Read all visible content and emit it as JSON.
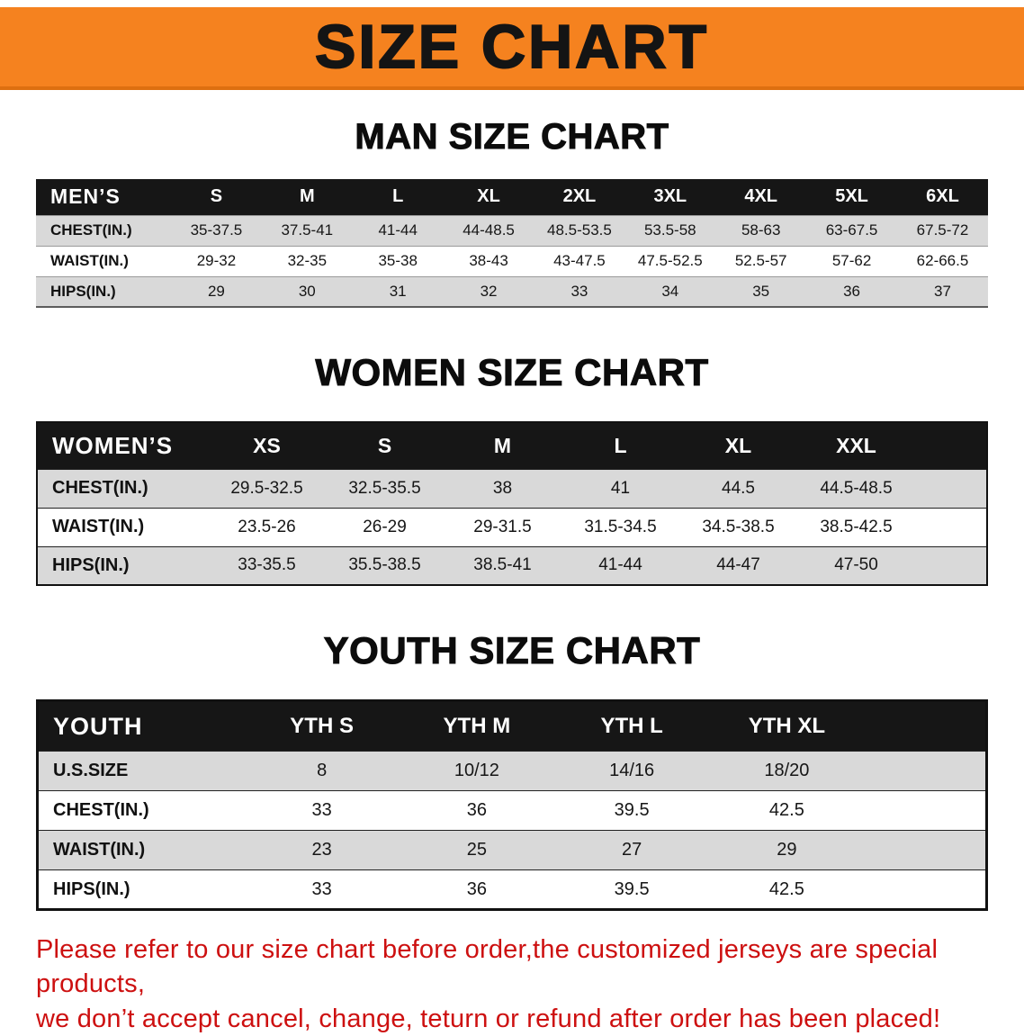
{
  "banner": {
    "title": "SIZE CHART"
  },
  "sections": [
    {
      "heading": "MAN SIZE CHART",
      "table": {
        "header": [
          "MEN’S",
          "S",
          "M",
          "L",
          "XL",
          "2XL",
          "3XL",
          "4XL",
          "5XL",
          "6XL"
        ],
        "rows": [
          [
            "CHEST(IN.)",
            "35-37.5",
            "37.5-41",
            "41-44",
            "44-48.5",
            "48.5-53.5",
            "53.5-58",
            "58-63",
            "63-67.5",
            "67.5-72"
          ],
          [
            "WAIST(IN.)",
            "29-32",
            "32-35",
            "35-38",
            "38-43",
            "43-47.5",
            "47.5-52.5",
            "52.5-57",
            "57-62",
            "62-66.5"
          ],
          [
            "HIPS(IN.)",
            "29",
            "30",
            "31",
            "32",
            "33",
            "34",
            "35",
            "36",
            "37"
          ]
        ]
      }
    },
    {
      "heading": "WOMEN SIZE CHART",
      "table": {
        "header": [
          "WOMEN’S",
          "XS",
          "S",
          "M",
          "L",
          "XL",
          "XXL"
        ],
        "rows": [
          [
            "CHEST(IN.)",
            "29.5-32.5",
            "32.5-35.5",
            "38",
            "41",
            "44.5",
            "44.5-48.5"
          ],
          [
            "WAIST(IN.)",
            "23.5-26",
            "26-29",
            "29-31.5",
            "31.5-34.5",
            "34.5-38.5",
            "38.5-42.5"
          ],
          [
            "HIPS(IN.)",
            "33-35.5",
            "35.5-38.5",
            "38.5-41",
            "41-44",
            "44-47",
            "47-50"
          ]
        ]
      }
    },
    {
      "heading": "YOUTH SIZE CHART",
      "table": {
        "header": [
          "YOUTH",
          "YTH S",
          "YTH M",
          "YTH L",
          "YTH XL"
        ],
        "rows": [
          [
            "U.S.SIZE",
            "8",
            "10/12",
            "14/16",
            "18/20"
          ],
          [
            "CHEST(IN.)",
            "33",
            "36",
            "39.5",
            "42.5"
          ],
          [
            "WAIST(IN.)",
            "23",
            "25",
            "27",
            "29"
          ],
          [
            "HIPS(IN.)",
            "33",
            "36",
            "39.5",
            "42.5"
          ]
        ]
      }
    }
  ],
  "disclaimer": {
    "line1": "Please refer to our size chart before order,the customized jerseys are special products,",
    "line2": "we don’t accept cancel, change, teturn or refund after order has been placed!"
  },
  "colors": {
    "banner_orange": "#f5821f",
    "header_black": "#161616",
    "row_gray": "#d9d9d9",
    "disclaimer_red": "#cd1010"
  }
}
